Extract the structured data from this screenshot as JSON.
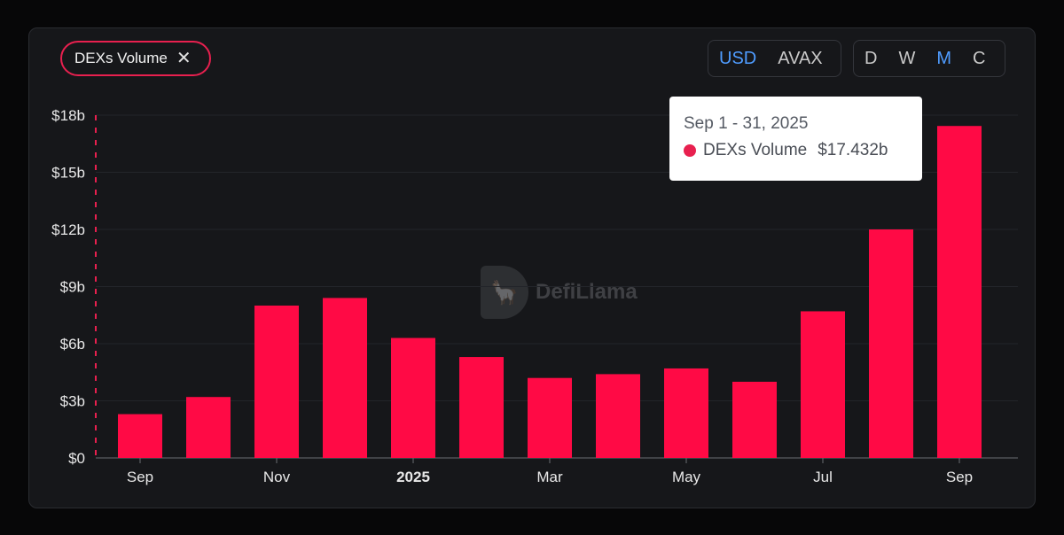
{
  "filter_chip": {
    "label": "DEXs Volume",
    "remove_icon": "close-icon"
  },
  "currency_toggle": {
    "options": [
      "USD",
      "AVAX"
    ],
    "selected": "USD"
  },
  "interval_toggle": {
    "options": [
      "D",
      "W",
      "M",
      "C"
    ],
    "selected": "M"
  },
  "watermark": {
    "text": "DefiLlama",
    "icon": "llama-logo-icon"
  },
  "tooltip": {
    "date": "Sep 1 - 31, 2025",
    "series_name": "DEXs Volume",
    "value": "$17.432b"
  },
  "colors": {
    "bar": "#ff0a45",
    "accent": "#4f9cff",
    "background": "#16171a"
  },
  "chart_data": {
    "type": "bar",
    "categories": [
      "Sep 2024",
      "Oct 2024",
      "Nov 2024",
      "Dec 2024",
      "Jan 2025",
      "Feb 2025",
      "Mar 2025",
      "Apr 2025",
      "May 2025",
      "Jun 2025",
      "Jul 2025",
      "Aug 2025",
      "Sep 2025"
    ],
    "series": [
      {
        "name": "DEXs Volume",
        "values": [
          2.3,
          3.2,
          8.0,
          8.4,
          6.3,
          5.3,
          4.2,
          4.4,
          4.7,
          4.0,
          7.7,
          12.0,
          17.432
        ]
      }
    ],
    "ylim": [
      0,
      18
    ],
    "y_ticks": [
      0,
      3,
      6,
      9,
      12,
      15,
      18
    ],
    "y_tick_labels": [
      "$0",
      "$3b",
      "$6b",
      "$9b",
      "$12b",
      "$15b",
      "$18b"
    ],
    "x_tick_labels": [
      {
        "category_index": 0,
        "label": "Sep",
        "bold": false
      },
      {
        "category_index": 2,
        "label": "Nov",
        "bold": false
      },
      {
        "category_index": 4,
        "label": "2025",
        "bold": true
      },
      {
        "category_index": 6,
        "label": "Mar",
        "bold": false
      },
      {
        "category_index": 8,
        "label": "May",
        "bold": false
      },
      {
        "category_index": 10,
        "label": "Jul",
        "bold": false
      },
      {
        "category_index": 12,
        "label": "Sep",
        "bold": false
      }
    ],
    "grid": true,
    "unit": "USD billions"
  }
}
